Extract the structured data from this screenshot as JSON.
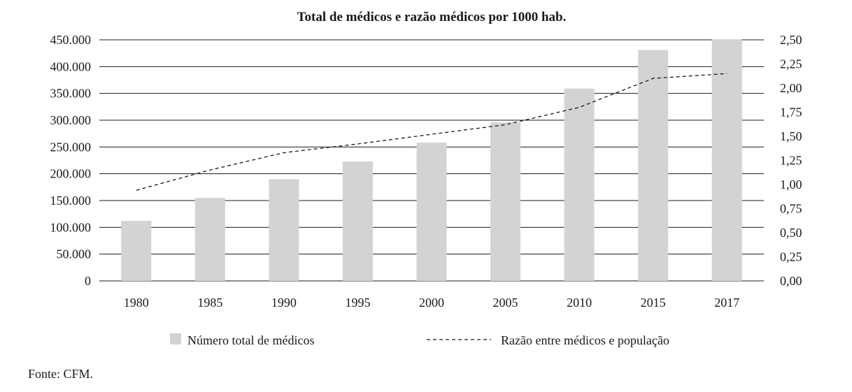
{
  "chart_data": {
    "type": "bar",
    "title": "Total de médicos e razão médicos por 1000 hab.",
    "categories": [
      "1980",
      "1985",
      "1990",
      "1995",
      "2000",
      "2005",
      "2010",
      "2015",
      "2017"
    ],
    "series": [
      {
        "name": "Número total de médicos",
        "type": "bar",
        "axis": "left",
        "values": [
          112000,
          155000,
          190000,
          223000,
          258000,
          296000,
          359000,
          431000,
          451000
        ]
      },
      {
        "name": "Razão entre médicos e população",
        "type": "line",
        "axis": "right",
        "style": "dashed",
        "values": [
          0.94,
          1.15,
          1.33,
          1.42,
          1.52,
          1.62,
          1.8,
          2.1,
          2.15
        ]
      }
    ],
    "y_left": {
      "ylim": [
        0,
        450000
      ],
      "ticks": [
        0,
        50000,
        100000,
        150000,
        200000,
        250000,
        300000,
        350000,
        400000,
        450000
      ],
      "tick_labels": [
        "0",
        "50.000",
        "100.000",
        "150.000",
        "200.000",
        "250.000",
        "300.000",
        "350.000",
        "400.000",
        "450.000"
      ]
    },
    "y_right": {
      "ylim": [
        0,
        2.5
      ],
      "ticks": [
        0,
        0.25,
        0.5,
        0.75,
        1.0,
        1.25,
        1.5,
        1.75,
        2.0,
        2.25,
        2.5
      ],
      "tick_labels": [
        "0,00",
        "0,25",
        "0,50",
        "0,75",
        "1,00",
        "1,25",
        "1,50",
        "1,75",
        "2,00",
        "2,25",
        "2,50"
      ]
    },
    "grid": true,
    "legend_position": "bottom"
  },
  "source_note": "Fonte: CFM.",
  "colors": {
    "bar": "#d3d3d3",
    "grid": "#1a1a1a",
    "line": "#1a1a1a"
  }
}
